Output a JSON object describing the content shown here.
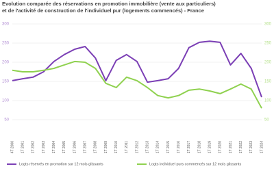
{
  "chart_data": {
    "type": "line",
    "title": [
      "Evolution comparée des réservations en promotion immobilière (vente aux particuliers)",
      "et de l'activité de construction de l'individuel pur (logements commencés) - France"
    ],
    "categories": [
      "4T 2000",
      "1T 2001",
      "1T 2002",
      "1T 2003",
      "1T 2004",
      "1T 2005",
      "1T 2006",
      "1T 2007",
      "1T 2008",
      "1T 2009",
      "1T 2010",
      "1T 2011",
      "1T 2012",
      "1T 2013",
      "1T 2014",
      "1T 2015",
      "1T 2016",
      "1T 2017",
      "1T 2018",
      "1T 2019",
      "1T 2020",
      "1T 2021",
      "1T 2022",
      "1T 2023",
      "1T 2024"
    ],
    "series": [
      {
        "name": "Logts réservés en promotion sur 12 mois glissants",
        "color": "#7b3fb5",
        "values": [
          152,
          157,
          161,
          175,
          202,
          220,
          234,
          241,
          211,
          152,
          205,
          220,
          202,
          148,
          152,
          157,
          184,
          238,
          252,
          255,
          252,
          193,
          223,
          184,
          109
        ]
      },
      {
        "name": "Logts individuel purs commencés sur 12 mois glissants",
        "color": "#8fd14f",
        "axis": "y2",
        "values": [
          179,
          175,
          175,
          179,
          184,
          193,
          202,
          200,
          184,
          145,
          134,
          161,
          152,
          134,
          113,
          107,
          113,
          127,
          130,
          125,
          118,
          130,
          143,
          130,
          80
        ]
      }
    ],
    "ylim": [
      0,
      300
    ],
    "yticks": [
      50,
      100,
      150,
      200,
      250,
      300
    ],
    "y2lim": [
      0,
      300
    ],
    "y2ticks": [
      50,
      100,
      150,
      200,
      250,
      300
    ],
    "grid": true
  }
}
